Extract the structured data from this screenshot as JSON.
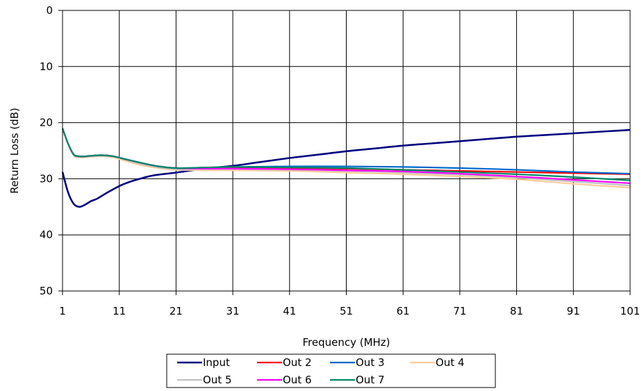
{
  "chart_data": {
    "type": "line",
    "title": "",
    "xlabel": "Frequency (MHz)",
    "ylabel": "Return Loss (dB)",
    "xlim": [
      1,
      101
    ],
    "ylim": [
      0,
      50
    ],
    "y_inverted": true,
    "grid": true,
    "legend_position": "bottom",
    "x_ticks": [
      "1",
      "11",
      "21",
      "31",
      "41",
      "51",
      "61",
      "71",
      "81",
      "91",
      "101"
    ],
    "y_ticks": [
      "0",
      "10",
      "20",
      "30",
      "40",
      "50"
    ],
    "series": [
      {
        "name": "Input",
        "color": "#000080",
        "x": [
          1,
          2,
          3,
          4,
          5,
          6,
          7,
          8,
          9,
          11,
          13,
          15,
          17,
          21,
          26,
          31,
          36,
          41,
          46,
          51,
          56,
          61,
          66,
          71,
          76,
          81,
          86,
          91,
          96,
          101
        ],
        "y": [
          28.8,
          32.5,
          34.5,
          35.0,
          34.6,
          34.0,
          33.6,
          33.0,
          32.4,
          31.3,
          30.5,
          29.9,
          29.4,
          28.9,
          28.2,
          27.7,
          27.0,
          26.3,
          25.7,
          25.1,
          24.6,
          24.1,
          23.7,
          23.3,
          22.9,
          22.5,
          22.2,
          21.9,
          21.6,
          21.3
        ]
      },
      {
        "name": "Out 2",
        "color": "#ff0000",
        "x": [
          1,
          2,
          3,
          4,
          5,
          6,
          8,
          10,
          12,
          15,
          18,
          21,
          26,
          31,
          41,
          51,
          61,
          71,
          81,
          91,
          101
        ],
        "y": [
          21.0,
          23.8,
          25.7,
          26.0,
          26.0,
          25.9,
          25.8,
          26.0,
          26.5,
          27.2,
          27.8,
          28.1,
          28.1,
          28.0,
          28.1,
          28.2,
          28.4,
          28.6,
          28.8,
          29.0,
          29.2
        ]
      },
      {
        "name": "Out 3",
        "color": "#0066cc",
        "x": [
          1,
          2,
          3,
          4,
          5,
          6,
          8,
          10,
          12,
          15,
          18,
          21,
          26,
          31,
          41,
          51,
          61,
          71,
          81,
          91,
          101
        ],
        "y": [
          21.0,
          23.8,
          25.7,
          26.0,
          26.0,
          25.9,
          25.8,
          26.0,
          26.5,
          27.2,
          27.8,
          28.1,
          28.0,
          27.9,
          27.8,
          27.8,
          27.9,
          28.1,
          28.4,
          28.8,
          29.1
        ]
      },
      {
        "name": "Out 4",
        "color": "#ffcc99",
        "x": [
          1,
          2,
          3,
          4,
          5,
          6,
          8,
          10,
          12,
          15,
          18,
          21,
          26,
          31,
          41,
          51,
          61,
          71,
          81,
          91,
          101
        ],
        "y": [
          21.0,
          23.9,
          25.9,
          26.2,
          26.2,
          26.1,
          26.0,
          26.2,
          26.8,
          27.6,
          28.1,
          28.4,
          28.5,
          28.5,
          28.6,
          28.9,
          29.2,
          29.6,
          30.1,
          30.9,
          31.6
        ]
      },
      {
        "name": "Out 5",
        "color": "#c0c0c0",
        "x": [
          1,
          2,
          3,
          4,
          5,
          6,
          8,
          10,
          12,
          15,
          18,
          21,
          26,
          31,
          41,
          51,
          61,
          71,
          81,
          91,
          101
        ],
        "y": [
          21.0,
          23.8,
          25.8,
          26.1,
          26.1,
          26.0,
          25.9,
          26.1,
          26.6,
          27.4,
          28.0,
          28.3,
          28.3,
          28.3,
          28.4,
          28.6,
          28.9,
          29.3,
          29.8,
          30.5,
          31.2
        ]
      },
      {
        "name": "Out 6",
        "color": "#ff00ff",
        "x": [
          1,
          2,
          3,
          4,
          5,
          6,
          8,
          10,
          12,
          15,
          18,
          21,
          26,
          31,
          41,
          51,
          61,
          71,
          81,
          91,
          101
        ],
        "y": [
          21.0,
          23.8,
          25.7,
          26.0,
          26.0,
          25.9,
          25.8,
          26.0,
          26.5,
          27.2,
          27.8,
          28.1,
          28.2,
          28.2,
          28.3,
          28.5,
          28.7,
          29.1,
          29.6,
          30.2,
          30.8
        ]
      },
      {
        "name": "Out 7",
        "color": "#008866",
        "x": [
          1,
          2,
          3,
          4,
          5,
          6,
          8,
          10,
          12,
          15,
          18,
          21,
          26,
          31,
          41,
          51,
          61,
          71,
          81,
          91,
          101
        ],
        "y": [
          21.0,
          23.8,
          25.7,
          26.0,
          26.0,
          25.9,
          25.8,
          26.0,
          26.5,
          27.2,
          27.8,
          28.1,
          28.0,
          27.9,
          28.0,
          28.1,
          28.4,
          28.8,
          29.2,
          29.7,
          30.3
        ]
      }
    ]
  }
}
